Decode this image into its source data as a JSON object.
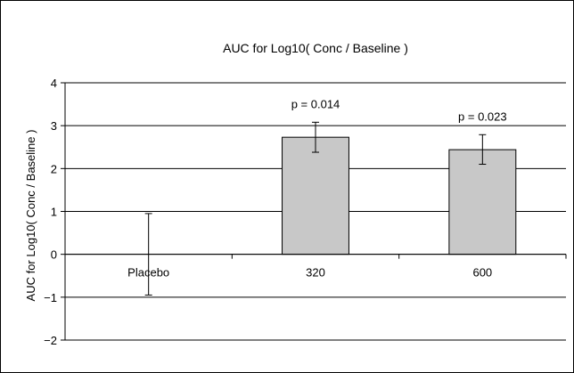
{
  "chart_data": {
    "type": "bar",
    "title": "AUC for Log10( Conc / Baseline )",
    "ylabel": "AUC for Log10( Conc / Baseline )",
    "xlabel": "",
    "categories": [
      "Placebo",
      "320",
      "600"
    ],
    "values": [
      0,
      2.73,
      2.44
    ],
    "error_low": [
      -0.95,
      2.38,
      2.1
    ],
    "error_high": [
      0.95,
      3.08,
      2.79
    ],
    "annotations": [
      "",
      "p = 0.014",
      "p = 0.023"
    ],
    "ylim": [
      -2,
      4
    ],
    "yticks": [
      "4",
      "3",
      "2",
      "1",
      "0",
      "−1",
      "−2"
    ],
    "ytick_values": [
      4,
      3,
      2,
      1,
      0,
      -1,
      -2
    ],
    "grid": true,
    "colors": {
      "bar_fill": "#c8c8c8",
      "bar_stroke": "#000000",
      "grid": "#000000",
      "error_bar": "#000000"
    }
  }
}
